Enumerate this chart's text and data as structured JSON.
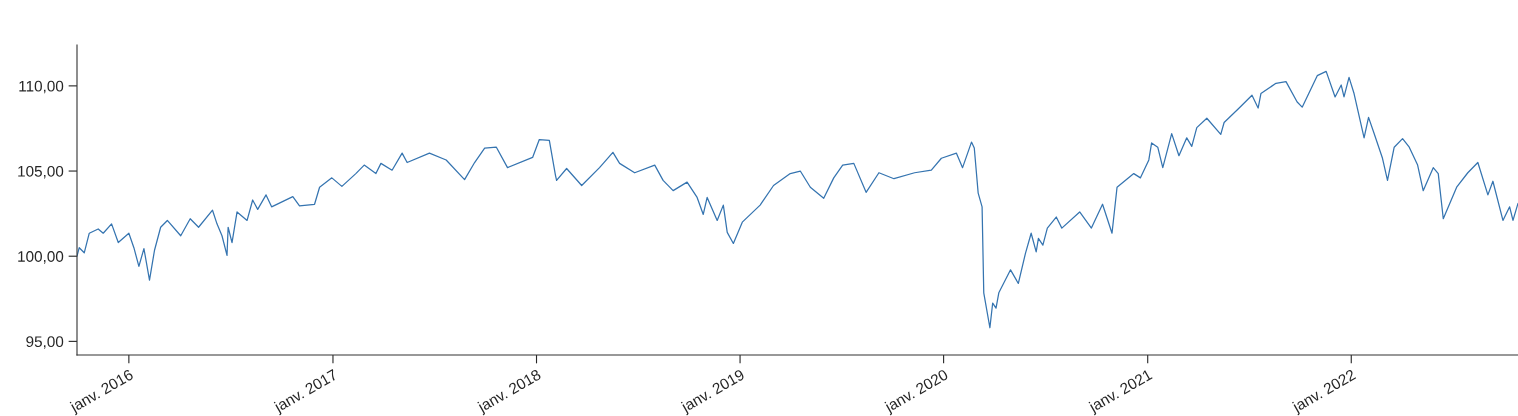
{
  "chart_data": {
    "type": "line",
    "x": [
      "2015-09-30",
      "2015-10-04",
      "2015-10-13",
      "2015-10-22",
      "2015-11-07",
      "2015-11-16",
      "2015-12-01",
      "2015-12-13",
      "2016-01-01",
      "2016-01-10",
      "2016-01-19",
      "2016-01-28",
      "2016-02-07",
      "2016-02-16",
      "2016-02-27",
      "2016-03-10",
      "2016-04-03",
      "2016-04-20",
      "2016-05-05",
      "2016-05-30",
      "2016-06-07",
      "2016-06-16",
      "2016-06-25",
      "2016-06-27",
      "2016-07-04",
      "2016-07-13",
      "2016-07-31",
      "2016-08-10",
      "2016-08-19",
      "2016-09-03",
      "2016-09-13",
      "2016-10-21",
      "2016-11-02",
      "2016-11-29",
      "2016-12-08",
      "2016-12-30",
      "2017-01-17",
      "2017-02-11",
      "2017-02-26",
      "2017-03-19",
      "2017-03-28",
      "2017-04-17",
      "2017-05-05",
      "2017-05-14",
      "2017-06-23",
      "2017-07-23",
      "2017-08-25",
      "2017-09-12",
      "2017-09-30",
      "2017-10-21",
      "2017-11-10",
      "2017-12-25",
      "2018-01-06",
      "2018-01-24",
      "2018-02-04",
      "2018-02-06",
      "2018-02-24",
      "2018-03-23",
      "2018-04-24",
      "2018-05-18",
      "2018-05-30",
      "2018-06-26",
      "2018-08-01",
      "2018-08-16",
      "2018-09-03",
      "2018-09-28",
      "2018-10-16",
      "2018-10-27",
      "2018-11-03",
      "2018-11-21",
      "2018-12-02",
      "2018-12-09",
      "2018-12-20",
      "2019-01-05",
      "2019-02-06",
      "2019-03-02",
      "2019-04-01",
      "2019-04-19",
      "2019-05-07",
      "2019-05-31",
      "2019-06-18",
      "2019-07-04",
      "2019-07-24",
      "2019-08-15",
      "2019-09-07",
      "2019-10-04",
      "2019-11-10",
      "2019-12-10",
      "2019-12-28",
      "2020-01-24",
      "2020-02-04",
      "2020-02-20",
      "2020-02-25",
      "2020-03-03",
      "2020-03-10",
      "2020-03-13",
      "2020-03-24",
      "2020-03-29",
      "2020-04-04",
      "2020-04-09",
      "2020-04-30",
      "2020-05-14",
      "2020-05-27",
      "2020-06-06",
      "2020-06-15",
      "2020-06-19",
      "2020-06-27",
      "2020-07-05",
      "2020-07-21",
      "2020-07-31",
      "2020-09-01",
      "2020-09-22",
      "2020-10-12",
      "2020-10-29",
      "2020-11-07",
      "2020-12-07",
      "2020-12-19",
      "2021-01-03",
      "2021-01-08",
      "2021-01-19",
      "2021-01-28",
      "2021-02-13",
      "2021-02-26",
      "2021-03-12",
      "2021-03-21",
      "2021-03-30",
      "2021-04-17",
      "2021-05-12",
      "2021-05-18",
      "2021-06-14",
      "2021-07-07",
      "2021-07-18",
      "2021-07-23",
      "2021-08-19",
      "2021-09-06",
      "2021-09-26",
      "2021-10-05",
      "2021-11-01",
      "2021-11-17",
      "2021-12-03",
      "2021-12-14",
      "2021-12-19",
      "2021-12-28",
      "2022-01-06",
      "2022-01-24",
      "2022-02-01",
      "2022-02-11",
      "2022-02-26",
      "2022-03-07",
      "2022-03-19",
      "2022-04-03",
      "2022-04-15",
      "2022-04-30",
      "2022-05-10",
      "2022-05-28",
      "2022-06-06",
      "2022-06-15",
      "2022-07-09",
      "2022-07-29",
      "2022-08-16",
      "2022-09-03",
      "2022-09-12",
      "2022-09-30",
      "2022-10-12",
      "2022-10-18",
      "2022-10-27"
    ],
    "series": [
      {
        "color": "#3574b0",
        "values": [
          100.0,
          100.5,
          100.2,
          101.35,
          101.6,
          101.35,
          101.9,
          100.8,
          101.35,
          100.5,
          99.4,
          100.45,
          98.6,
          100.35,
          101.7,
          102.1,
          101.2,
          102.2,
          101.7,
          102.7,
          101.9,
          101.2,
          100.05,
          101.7,
          100.8,
          102.6,
          102.1,
          103.3,
          102.75,
          103.6,
          102.9,
          103.5,
          102.95,
          103.05,
          104.05,
          104.6,
          104.1,
          104.85,
          105.35,
          104.85,
          105.45,
          105.05,
          106.05,
          105.5,
          106.05,
          105.65,
          104.5,
          105.5,
          106.35,
          106.4,
          105.2,
          105.8,
          106.85,
          106.8,
          104.75,
          104.45,
          105.15,
          104.15,
          105.2,
          106.1,
          105.45,
          104.9,
          105.35,
          104.45,
          103.85,
          104.35,
          103.45,
          102.45,
          103.45,
          102.1,
          103.0,
          101.4,
          100.75,
          102.0,
          103.0,
          104.15,
          104.85,
          105.0,
          104.05,
          103.4,
          104.6,
          105.35,
          105.45,
          103.75,
          104.9,
          104.55,
          104.9,
          105.05,
          105.75,
          106.05,
          105.2,
          106.7,
          106.35,
          103.7,
          102.9,
          97.85,
          95.8,
          97.25,
          96.95,
          97.85,
          99.2,
          98.4,
          100.2,
          101.35,
          100.25,
          101.05,
          100.65,
          101.65,
          102.3,
          101.65,
          102.6,
          101.65,
          103.05,
          101.35,
          104.05,
          104.85,
          104.6,
          105.65,
          106.65,
          106.4,
          105.2,
          107.2,
          105.9,
          106.95,
          106.45,
          107.55,
          108.1,
          107.15,
          107.85,
          108.7,
          109.45,
          108.7,
          109.55,
          110.15,
          110.25,
          109.05,
          108.75,
          110.6,
          110.85,
          109.35,
          110.05,
          109.35,
          110.5,
          109.55,
          106.95,
          108.15,
          107.2,
          105.75,
          104.45,
          106.4,
          106.9,
          106.4,
          105.35,
          103.85,
          105.2,
          104.85,
          102.2,
          104.05,
          104.9,
          105.5,
          103.6,
          104.4,
          102.1,
          102.9,
          102.1,
          103.1
        ]
      }
    ],
    "xlim": [
      "2015-09-30",
      "2022-10-27"
    ],
    "xticks": [
      {
        "value": "2016-01-01",
        "label": "janv. 2016"
      },
      {
        "value": "2017-01-01",
        "label": "janv. 2017"
      },
      {
        "value": "2018-01-01",
        "label": "janv. 2018"
      },
      {
        "value": "2019-01-01",
        "label": "janv. 2019"
      },
      {
        "value": "2020-01-01",
        "label": "janv. 2020"
      },
      {
        "value": "2021-01-01",
        "label": "janv. 2021"
      },
      {
        "value": "2022-01-01",
        "label": "janv. 2022"
      }
    ],
    "ylim": [
      94.2,
      112.4
    ],
    "yticks": [
      {
        "value": 95,
        "label": "95,00"
      },
      {
        "value": 100,
        "label": "100,00"
      },
      {
        "value": 105,
        "label": "105,00"
      },
      {
        "value": 110,
        "label": "110,00"
      }
    ],
    "grid": false,
    "marker": "none",
    "line_style": "solid"
  }
}
